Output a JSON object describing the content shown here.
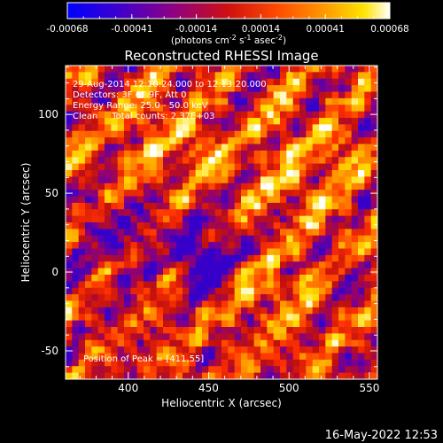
{
  "chart_data": {
    "type": "heatmap",
    "title": "Reconstructed RHESSI Image",
    "xlabel": "Heliocentric X (arcsec)",
    "ylabel": "Heliocentric Y (arcsec)",
    "xlim": [
      361,
      555
    ],
    "ylim": [
      -68,
      131
    ],
    "x_ticks": [
      "400",
      "450",
      "500",
      "550"
    ],
    "y_ticks": [
      "-50",
      "0",
      "50",
      "100"
    ],
    "colorbar": {
      "min": -0.00068,
      "max": 0.00068,
      "tick_labels": [
        "-0.00068",
        "-0.00041",
        "-0.00014",
        "0.00014",
        "0.00041",
        "0.00068"
      ],
      "unit_label_parts": [
        "(photons cm",
        "-2",
        " s",
        "-1",
        " asec",
        "-2",
        ")"
      ],
      "colormap": [
        "#0000ff",
        "#4000c0",
        "#8a0080",
        "#c01010",
        "#ff3000",
        "#ff9000",
        "#ffe000",
        "#ffffff"
      ]
    },
    "annotations": [
      "29-Aug-2014 12:10:24.000 to 12:13:20.000",
      "Detectors: 3F 6F 9F, Att 0",
      "Energy Range: 25.0 - 50.0 keV",
      "Clean     Total counts: 2.37E+03"
    ],
    "peak_label": "Position of Peak = [411,55]",
    "peak_position": [
      411,
      55
    ],
    "image_grid": {
      "cols": 48,
      "rows": 48,
      "pixel_size_arcsec": 4
    }
  },
  "footer": {
    "timestamp": "16-May-2022 12:53"
  }
}
